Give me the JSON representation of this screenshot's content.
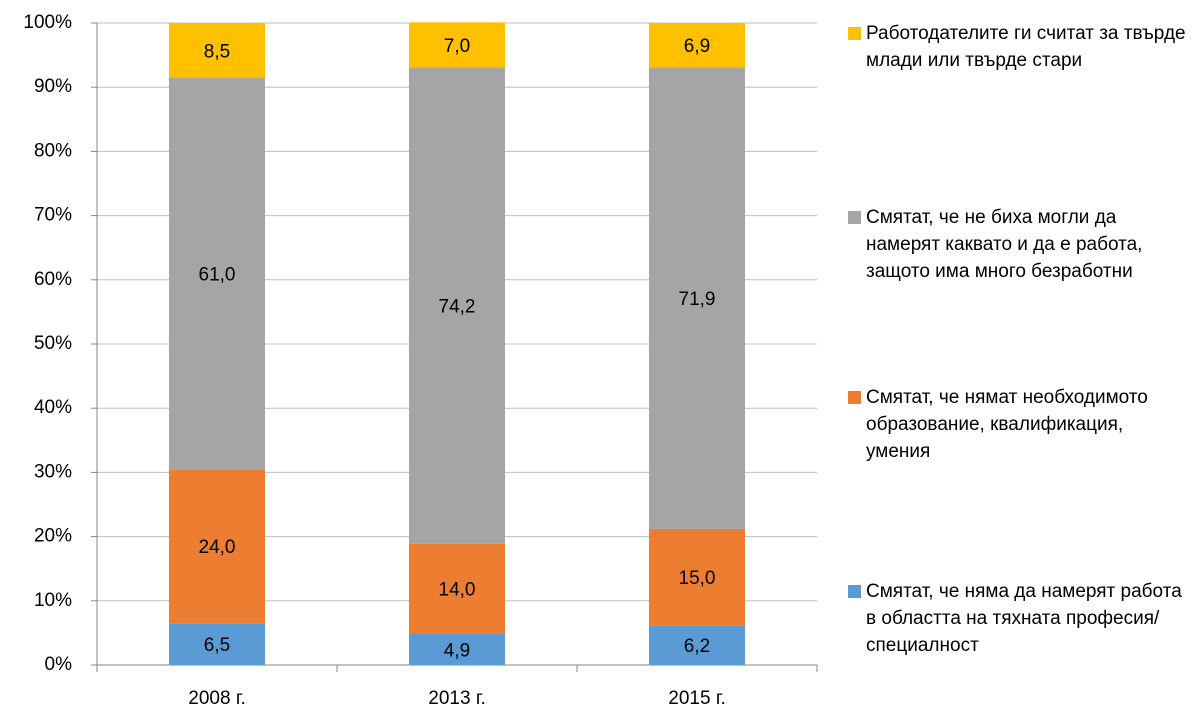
{
  "chart_data": {
    "type": "stacked-bar",
    "categories": [
      "2008 г.",
      "2013 г.",
      "2015 г."
    ],
    "series": [
      {
        "name": "Смятат, че няма да намерят работа в областта на тяхната професия/специалност",
        "color": "#5b9bd5",
        "values": [
          6.5,
          4.9,
          6.2
        ],
        "value_labels": [
          "6,5",
          "4,9",
          "6,2"
        ]
      },
      {
        "name": "Смятат, че нямат необходимото образование, квалификация, умения",
        "color": "#ed7d31",
        "values": [
          24.0,
          14.0,
          15.0
        ],
        "value_labels": [
          "24,0",
          "14,0",
          "15,0"
        ]
      },
      {
        "name": "Смятат, че не биха могли да намерят каквато и да е работа, защото има много безработни",
        "color": "#a5a5a5",
        "values": [
          61.0,
          74.2,
          71.9
        ],
        "value_labels": [
          "61,0",
          "74,2",
          "71,9"
        ]
      },
      {
        "name": "Работодателите ги считат за твърде млади или твърде стари",
        "color": "#ffc000",
        "values": [
          8.5,
          7.0,
          6.9
        ],
        "value_labels": [
          "8,5",
          "7,0",
          "6,9"
        ]
      }
    ],
    "ylim": [
      0,
      100
    ],
    "yticks": [
      {
        "value": 0,
        "label": "0%"
      },
      {
        "value": 10,
        "label": "10%"
      },
      {
        "value": 20,
        "label": "20%"
      },
      {
        "value": 30,
        "label": "30%"
      },
      {
        "value": 40,
        "label": "40%"
      },
      {
        "value": 50,
        "label": "50%"
      },
      {
        "value": 60,
        "label": "60%"
      },
      {
        "value": 70,
        "label": "70%"
      },
      {
        "value": 80,
        "label": "80%"
      },
      {
        "value": 90,
        "label": "90%"
      },
      {
        "value": 100,
        "label": "100%"
      }
    ],
    "grid": true,
    "legend": "right"
  }
}
